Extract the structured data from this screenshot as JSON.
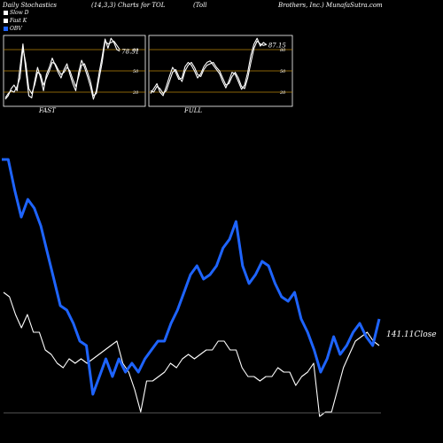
{
  "header": {
    "title_left": "Daily Stochastics",
    "title_mid": "(14,3,3) Charts for TOL",
    "title_right_1": "(Toll",
    "title_right_2": "Brothers, Inc.) MunafaSutra.com"
  },
  "legend": [
    {
      "label": "Slow  D",
      "color": "#ffffff"
    },
    {
      "label": "Fast  K",
      "color": "#ffffff"
    },
    {
      "label": "OBV",
      "color": "#1e64ff"
    }
  ],
  "colors": {
    "background": "#000000",
    "grid": "#b8860b",
    "stoch": "#ffffff",
    "obv": "#1e64ff",
    "price": "#ffffff"
  },
  "chart_data": [
    {
      "type": "line",
      "panel": "FAST",
      "title": "FAST",
      "ylim": [
        0,
        100
      ],
      "y_ticks": [
        "80",
        "50",
        "20"
      ],
      "grid_y": [
        20,
        50,
        80
      ],
      "last_value_label": "78.51",
      "series": [
        {
          "values": [
            12,
            18,
            22,
            20,
            28,
            40,
            82,
            60,
            25,
            18,
            30,
            48,
            45,
            30,
            40,
            50,
            62,
            60,
            52,
            45,
            48,
            55,
            50,
            38,
            28,
            42,
            58,
            60,
            48,
            35,
            15,
            18,
            40,
            62,
            92,
            88,
            90,
            92,
            86,
            80
          ]
        },
        {
          "values": [
            10,
            15,
            25,
            30,
            22,
            55,
            88,
            50,
            15,
            12,
            35,
            55,
            40,
            22,
            45,
            55,
            68,
            58,
            48,
            40,
            52,
            60,
            45,
            32,
            22,
            48,
            65,
            55,
            42,
            28,
            10,
            22,
            48,
            70,
            95,
            82,
            96,
            90,
            80,
            78
          ]
        }
      ]
    },
    {
      "type": "line",
      "panel": "FULL",
      "title": "FULL",
      "ylim": [
        0,
        100
      ],
      "y_ticks": [
        "80",
        "50",
        "20"
      ],
      "grid_y": [
        20,
        50,
        80
      ],
      "last_value_label": "87.15",
      "series": [
        {
          "values": [
            22,
            20,
            28,
            25,
            18,
            22,
            35,
            48,
            52,
            42,
            35,
            50,
            58,
            62,
            55,
            45,
            42,
            52,
            58,
            60,
            62,
            55,
            50,
            40,
            30,
            32,
            42,
            48,
            40,
            28,
            25,
            40,
            62,
            82,
            92,
            88,
            86,
            87
          ]
        },
        {
          "values": [
            18,
            25,
            32,
            20,
            15,
            28,
            42,
            55,
            48,
            38,
            40,
            56,
            62,
            58,
            50,
            40,
            46,
            56,
            62,
            64,
            58,
            52,
            46,
            35,
            26,
            36,
            48,
            45,
            35,
            24,
            30,
            48,
            72,
            88,
            96,
            85,
            90,
            87
          ]
        }
      ]
    },
    {
      "type": "line",
      "panel": "OBV",
      "series": [
        {
          "name": "OBV",
          "values": [
            180,
            180,
            215,
            245,
            225,
            235,
            255,
            285,
            315,
            345,
            350,
            365,
            385,
            390,
            445,
            425,
            405,
            425,
            405,
            420,
            410,
            420,
            405,
            395,
            385,
            385,
            365,
            350,
            330,
            310,
            300,
            315,
            310,
            300,
            280,
            270,
            250,
            300,
            320,
            310,
            295,
            300,
            320,
            335,
            340,
            330,
            360,
            375,
            395,
            420,
            405,
            380,
            400,
            390,
            375,
            365,
            380,
            390,
            360
          ]
        }
      ]
    },
    {
      "type": "line",
      "panel": "price",
      "last_value_label": "141.11",
      "last_value_suffix": "Close",
      "series": [
        {
          "values": [
            330,
            335,
            355,
            370,
            355,
            375,
            375,
            395,
            400,
            410,
            415,
            405,
            410,
            405,
            410,
            405,
            400,
            395,
            390,
            385,
            410,
            420,
            440,
            465,
            430,
            430,
            425,
            420,
            410,
            415,
            405,
            400,
            405,
            400,
            395,
            395,
            385,
            385,
            395,
            395,
            415,
            425,
            425,
            430,
            425,
            425,
            415,
            420,
            420,
            435,
            425,
            420,
            410,
            470,
            465,
            465,
            440,
            415,
            400,
            385,
            380,
            375,
            385,
            390
          ]
        }
      ]
    }
  ]
}
